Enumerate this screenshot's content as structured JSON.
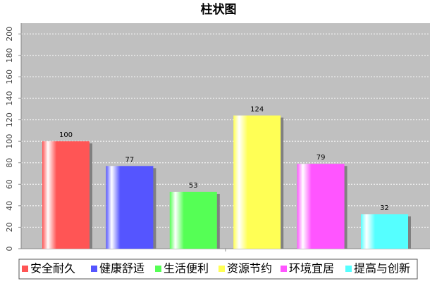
{
  "chart_data": {
    "type": "bar",
    "title": "柱状图",
    "categories": [
      null
    ],
    "series": [
      {
        "name": "安全耐久",
        "color": "#ff5555",
        "values": [
          100
        ]
      },
      {
        "name": "健康舒适",
        "color": "#5555ff",
        "values": [
          77
        ]
      },
      {
        "name": "生活便利",
        "color": "#55ff55",
        "values": [
          53
        ]
      },
      {
        "name": "资源节约",
        "color": "#ffff55",
        "values": [
          124
        ]
      },
      {
        "name": "环境宜居",
        "color": "#ff55ff",
        "values": [
          79
        ]
      },
      {
        "name": "提高与创新",
        "color": "#55ffff",
        "values": [
          32
        ]
      }
    ],
    "ylim": [
      0,
      210
    ],
    "yticks": [
      0,
      20,
      40,
      60,
      80,
      100,
      120,
      140,
      160,
      180,
      200
    ],
    "grid": true,
    "legend": "bottom"
  }
}
